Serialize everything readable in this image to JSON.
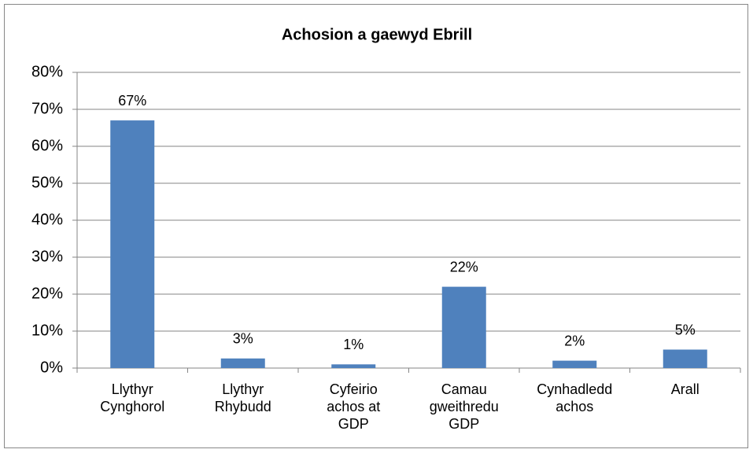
{
  "chart_data": {
    "type": "bar",
    "title": "Achosion a gaewyd Ebrill",
    "categories": [
      "Llythyr Cynghorol",
      "Llythyr Rhybudd",
      "Cyfeirio achos at GDP",
      "Camau gweithredu GDP",
      "Cynhadledd achos",
      "Arall"
    ],
    "values": [
      67,
      2.6,
      1,
      22,
      2,
      5
    ],
    "value_labels": [
      "67%",
      "3%",
      "1%",
      "22%",
      "2%",
      "5%"
    ],
    "color": "#4f81bd",
    "ylim": [
      0,
      80
    ],
    "yticks": [
      {
        "value": 0,
        "label": "0%"
      },
      {
        "value": 10,
        "label": "10%"
      },
      {
        "value": 20,
        "label": "20%"
      },
      {
        "value": 30,
        "label": "30%"
      },
      {
        "value": 40,
        "label": "40%"
      },
      {
        "value": 50,
        "label": "50%"
      },
      {
        "value": 60,
        "label": "60%"
      },
      {
        "value": 70,
        "label": "70%"
      },
      {
        "value": 80,
        "label": "80%"
      }
    ],
    "grid": true
  }
}
